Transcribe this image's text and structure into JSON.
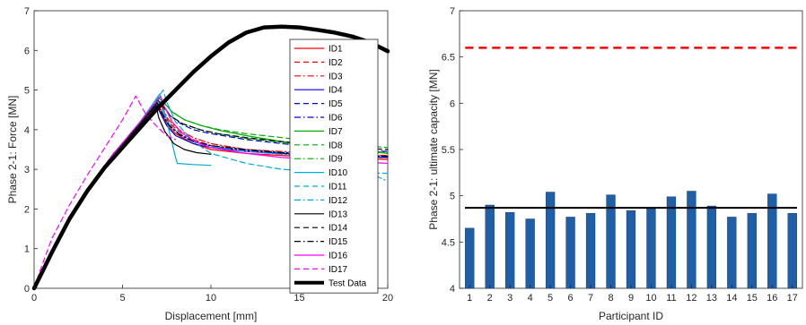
{
  "chart_data": [
    {
      "type": "line",
      "xlabel": "Displacement [mm]",
      "ylabel": "Phase 2-1: Force [MN]",
      "xlim": [
        0,
        20
      ],
      "ylim": [
        0,
        7
      ],
      "xticks": [
        "0",
        "5",
        "10",
        "15",
        "20"
      ],
      "yticks": [
        "0",
        "1",
        "2",
        "3",
        "4",
        "5",
        "6",
        "7"
      ],
      "grid": false,
      "legend": "top-right",
      "series": [
        {
          "name": "ID1",
          "color": "#ff0000",
          "dash": "solid",
          "width": 1.2,
          "x": [
            0,
            0.5,
            1.5,
            3,
            4.5,
            6,
            6.9,
            7.1,
            7.5,
            8,
            9,
            10,
            12,
            14,
            16,
            18,
            20
          ],
          "y": [
            0,
            0.4,
            1.35,
            2.5,
            3.4,
            4.15,
            4.65,
            4.5,
            4.15,
            3.9,
            3.65,
            3.5,
            3.4,
            3.35,
            3.3,
            3.28,
            3.25
          ]
        },
        {
          "name": "ID2",
          "color": "#ff0000",
          "dash": "dash",
          "width": 1.2,
          "x": [
            0,
            0.5,
            1.5,
            3,
            4.5,
            6,
            6.95,
            7.15,
            7.6,
            8.2,
            9,
            10,
            12,
            14,
            16,
            18,
            20
          ],
          "y": [
            0,
            0.4,
            1.35,
            2.5,
            3.4,
            4.15,
            4.7,
            4.55,
            4.2,
            3.95,
            3.75,
            3.6,
            3.45,
            3.4,
            3.35,
            3.33,
            3.3
          ]
        },
        {
          "name": "ID3",
          "color": "#ff0000",
          "dash": "dashdot",
          "width": 1.2,
          "x": [
            0,
            0.5,
            1.5,
            3,
            4.5,
            6,
            7.0,
            7.2,
            7.6,
            8.2,
            9,
            10,
            12,
            14,
            16,
            18,
            20
          ],
          "y": [
            0,
            0.4,
            1.35,
            2.5,
            3.4,
            4.15,
            4.75,
            4.6,
            4.25,
            4.0,
            3.8,
            3.65,
            3.5,
            3.45,
            3.4,
            3.37,
            3.35
          ]
        },
        {
          "name": "ID4",
          "color": "#0000dd",
          "dash": "solid",
          "width": 1.2,
          "x": [
            0,
            0.5,
            1.5,
            3,
            4.5,
            6,
            6.9,
            7.1,
            7.5,
            8,
            9,
            10,
            12,
            14,
            16,
            18,
            20
          ],
          "y": [
            0,
            0.4,
            1.35,
            2.5,
            3.4,
            4.15,
            4.62,
            4.45,
            4.1,
            3.85,
            3.65,
            3.55,
            3.45,
            3.4,
            3.35,
            3.32,
            3.3
          ]
        },
        {
          "name": "ID5",
          "color": "#0000dd",
          "dash": "dash",
          "width": 1.2,
          "x": [
            0,
            0.5,
            1.5,
            3,
            4.5,
            6,
            7.0,
            7.25,
            7.7,
            8.3,
            9,
            10,
            12,
            14,
            16,
            18,
            20
          ],
          "y": [
            0,
            0.4,
            1.35,
            2.5,
            3.4,
            4.15,
            4.8,
            4.65,
            4.35,
            4.15,
            4.0,
            3.9,
            3.75,
            3.65,
            3.55,
            3.5,
            3.45
          ]
        },
        {
          "name": "ID6",
          "color": "#0000dd",
          "dash": "dashdot",
          "width": 1.2,
          "x": [
            0,
            0.5,
            1.5,
            3,
            4.5,
            6,
            6.95,
            7.15,
            7.6,
            8.2,
            9,
            10,
            12,
            14,
            16,
            18,
            20
          ],
          "y": [
            0,
            0.4,
            1.35,
            2.5,
            3.4,
            4.15,
            4.68,
            4.5,
            4.15,
            3.9,
            3.72,
            3.6,
            3.48,
            3.42,
            3.38,
            3.35,
            3.32
          ]
        },
        {
          "name": "ID7",
          "color": "#00aa00",
          "dash": "solid",
          "width": 1.2,
          "x": [
            0,
            0.5,
            1.5,
            3,
            4.5,
            6,
            7.05,
            7.3,
            7.8,
            8.5,
            9.5,
            10.5,
            12,
            14,
            16,
            18,
            20
          ],
          "y": [
            0,
            0.4,
            1.35,
            2.5,
            3.4,
            4.15,
            4.8,
            4.7,
            4.45,
            4.25,
            4.1,
            3.98,
            3.85,
            3.7,
            3.6,
            3.5,
            3.4
          ]
        },
        {
          "name": "ID8",
          "color": "#00aa00",
          "dash": "dash",
          "width": 1.2,
          "x": [
            0,
            0.5,
            1.5,
            3,
            4.5,
            6,
            7.05,
            7.3,
            7.8,
            8.5,
            9.5,
            10.5,
            12,
            14,
            16,
            18,
            20
          ],
          "y": [
            0,
            0.4,
            1.35,
            2.5,
            3.4,
            4.15,
            4.82,
            4.72,
            4.45,
            4.25,
            4.1,
            4.0,
            3.9,
            3.8,
            3.7,
            3.62,
            3.55
          ]
        },
        {
          "name": "ID9",
          "color": "#00aa00",
          "dash": "dashdot",
          "width": 1.2,
          "x": [
            0,
            0.5,
            1.5,
            3,
            4.5,
            6,
            7.0,
            7.25,
            7.7,
            8.4,
            9.4,
            10.4,
            12,
            14,
            16,
            18,
            20
          ],
          "y": [
            0,
            0.4,
            1.35,
            2.5,
            3.4,
            4.15,
            4.75,
            4.62,
            4.35,
            4.15,
            4.0,
            3.9,
            3.78,
            3.68,
            3.58,
            3.5,
            3.42
          ]
        },
        {
          "name": "ID10",
          "color": "#00aadd",
          "dash": "solid",
          "width": 1.2,
          "x": [
            0,
            0.5,
            1.5,
            3,
            4.5,
            6,
            7.1,
            7.4,
            8.0,
            8.1,
            9,
            10
          ],
          "y": [
            0,
            0.4,
            1.35,
            2.5,
            3.4,
            4.2,
            4.9,
            4.4,
            3.3,
            3.15,
            3.12,
            3.1
          ]
        },
        {
          "name": "ID11",
          "color": "#00aadd",
          "dash": "dash",
          "width": 1.2,
          "x": [
            0,
            0.5,
            1.5,
            3,
            4.5,
            6,
            7.3,
            7.5,
            8,
            9,
            10,
            12,
            14,
            16,
            18,
            20
          ],
          "y": [
            0,
            0.4,
            1.35,
            2.5,
            3.4,
            4.2,
            5.0,
            4.7,
            4.2,
            3.7,
            3.4,
            3.15,
            3.0,
            2.95,
            2.92,
            2.9
          ]
        },
        {
          "name": "ID12",
          "color": "#00aadd",
          "dash": "dashdot",
          "width": 1.2,
          "x": [
            0,
            0.5,
            1.5,
            3,
            4.5,
            6,
            7.0,
            7.2,
            7.7,
            8.3,
            9,
            10,
            12,
            14,
            16,
            18,
            19,
            20
          ],
          "y": [
            0,
            0.4,
            1.35,
            2.5,
            3.4,
            4.15,
            4.7,
            4.5,
            4.1,
            3.85,
            3.7,
            3.58,
            3.45,
            3.38,
            3.3,
            3.2,
            2.9,
            2.7
          ]
        },
        {
          "name": "ID13",
          "color": "#000000",
          "dash": "solid",
          "width": 1.2,
          "x": [
            0,
            0.5,
            1.5,
            3,
            4.5,
            6,
            6.9,
            7.05,
            7.4,
            7.9,
            8.5,
            9.2,
            10
          ],
          "y": [
            0,
            0.4,
            1.35,
            2.5,
            3.4,
            4.15,
            4.6,
            4.3,
            3.95,
            3.65,
            3.5,
            3.42,
            3.38
          ]
        },
        {
          "name": "ID14",
          "color": "#000000",
          "dash": "dash",
          "width": 1.2,
          "x": [
            0,
            0.5,
            1.5,
            3,
            4.5,
            6,
            7.0,
            7.25,
            7.7,
            8.4,
            9.4,
            10.4,
            12,
            14,
            16,
            18,
            20
          ],
          "y": [
            0,
            0.4,
            1.35,
            2.5,
            3.4,
            4.15,
            4.75,
            4.6,
            4.35,
            4.15,
            4.0,
            3.9,
            3.8,
            3.7,
            3.62,
            3.55,
            3.5
          ]
        },
        {
          "name": "ID15",
          "color": "#000000",
          "dash": "dashdot",
          "width": 1.2,
          "x": [
            0,
            0.5,
            1.5,
            3,
            4.5,
            6,
            6.95,
            7.15,
            7.6,
            8.2,
            9,
            10,
            12,
            14,
            16,
            18,
            20
          ],
          "y": [
            0,
            0.4,
            1.35,
            2.5,
            3.4,
            4.15,
            4.68,
            4.48,
            4.12,
            3.88,
            3.7,
            3.6,
            3.5,
            3.42,
            3.38,
            3.35,
            3.33
          ]
        },
        {
          "name": "ID16",
          "color": "#ff00ff",
          "dash": "solid",
          "width": 1.2,
          "x": [
            0,
            0.5,
            1.5,
            3,
            4.5,
            6,
            7.15,
            7.35,
            7.8,
            8.4,
            9.2,
            10,
            12,
            14,
            16,
            18,
            20
          ],
          "y": [
            0,
            0.4,
            1.35,
            2.5,
            3.4,
            4.2,
            4.85,
            4.6,
            4.2,
            3.9,
            3.68,
            3.55,
            3.4,
            3.3,
            3.25,
            3.2,
            3.15
          ]
        },
        {
          "name": "ID17",
          "color": "#ff00ff",
          "dash": "dash",
          "width": 1.2,
          "x": [
            0,
            0.3,
            1,
            2,
            3,
            4,
            5,
            5.75,
            6.3,
            7,
            7.5,
            8
          ],
          "y": [
            0,
            0.4,
            1.25,
            2.1,
            2.85,
            3.55,
            4.25,
            4.85,
            4.4,
            4.05,
            3.85,
            3.75
          ]
        },
        {
          "name": "Test Data",
          "color": "#000000",
          "dash": "solid",
          "width": 4.5,
          "x": [
            0,
            0.5,
            1,
            2,
            3,
            4,
            5,
            6,
            7,
            8,
            9,
            10,
            11,
            12,
            13,
            14,
            15,
            16,
            17,
            18,
            19,
            20
          ],
          "y": [
            0,
            0.45,
            0.9,
            1.75,
            2.45,
            3.05,
            3.55,
            4.05,
            4.55,
            5.0,
            5.45,
            5.85,
            6.2,
            6.45,
            6.58,
            6.6,
            6.58,
            6.52,
            6.45,
            6.35,
            6.2,
            5.98
          ]
        }
      ]
    },
    {
      "type": "bar",
      "xlabel": "Participant ID",
      "ylabel": "Phase 2-1: ultimate capacity [MN]",
      "ylim": [
        4,
        7
      ],
      "yticks": [
        "4",
        "4.5",
        "5",
        "5.5",
        "6",
        "6.5",
        "7"
      ],
      "categories": [
        "1",
        "2",
        "3",
        "4",
        "5",
        "6",
        "7",
        "8",
        "9",
        "10",
        "11",
        "12",
        "13",
        "14",
        "15",
        "16",
        "17"
      ],
      "values": [
        4.65,
        4.9,
        4.82,
        4.75,
        5.04,
        4.77,
        4.81,
        5.01,
        4.84,
        4.86,
        4.99,
        5.05,
        4.89,
        4.77,
        4.81,
        5.02,
        4.81
      ],
      "bar_color": "#1f5fa8",
      "reference_lines": [
        {
          "value": 6.6,
          "color": "#ff0000",
          "dash": "dash"
        },
        {
          "value": 4.87,
          "color": "#000000",
          "dash": "solid"
        }
      ],
      "grid": false
    }
  ]
}
